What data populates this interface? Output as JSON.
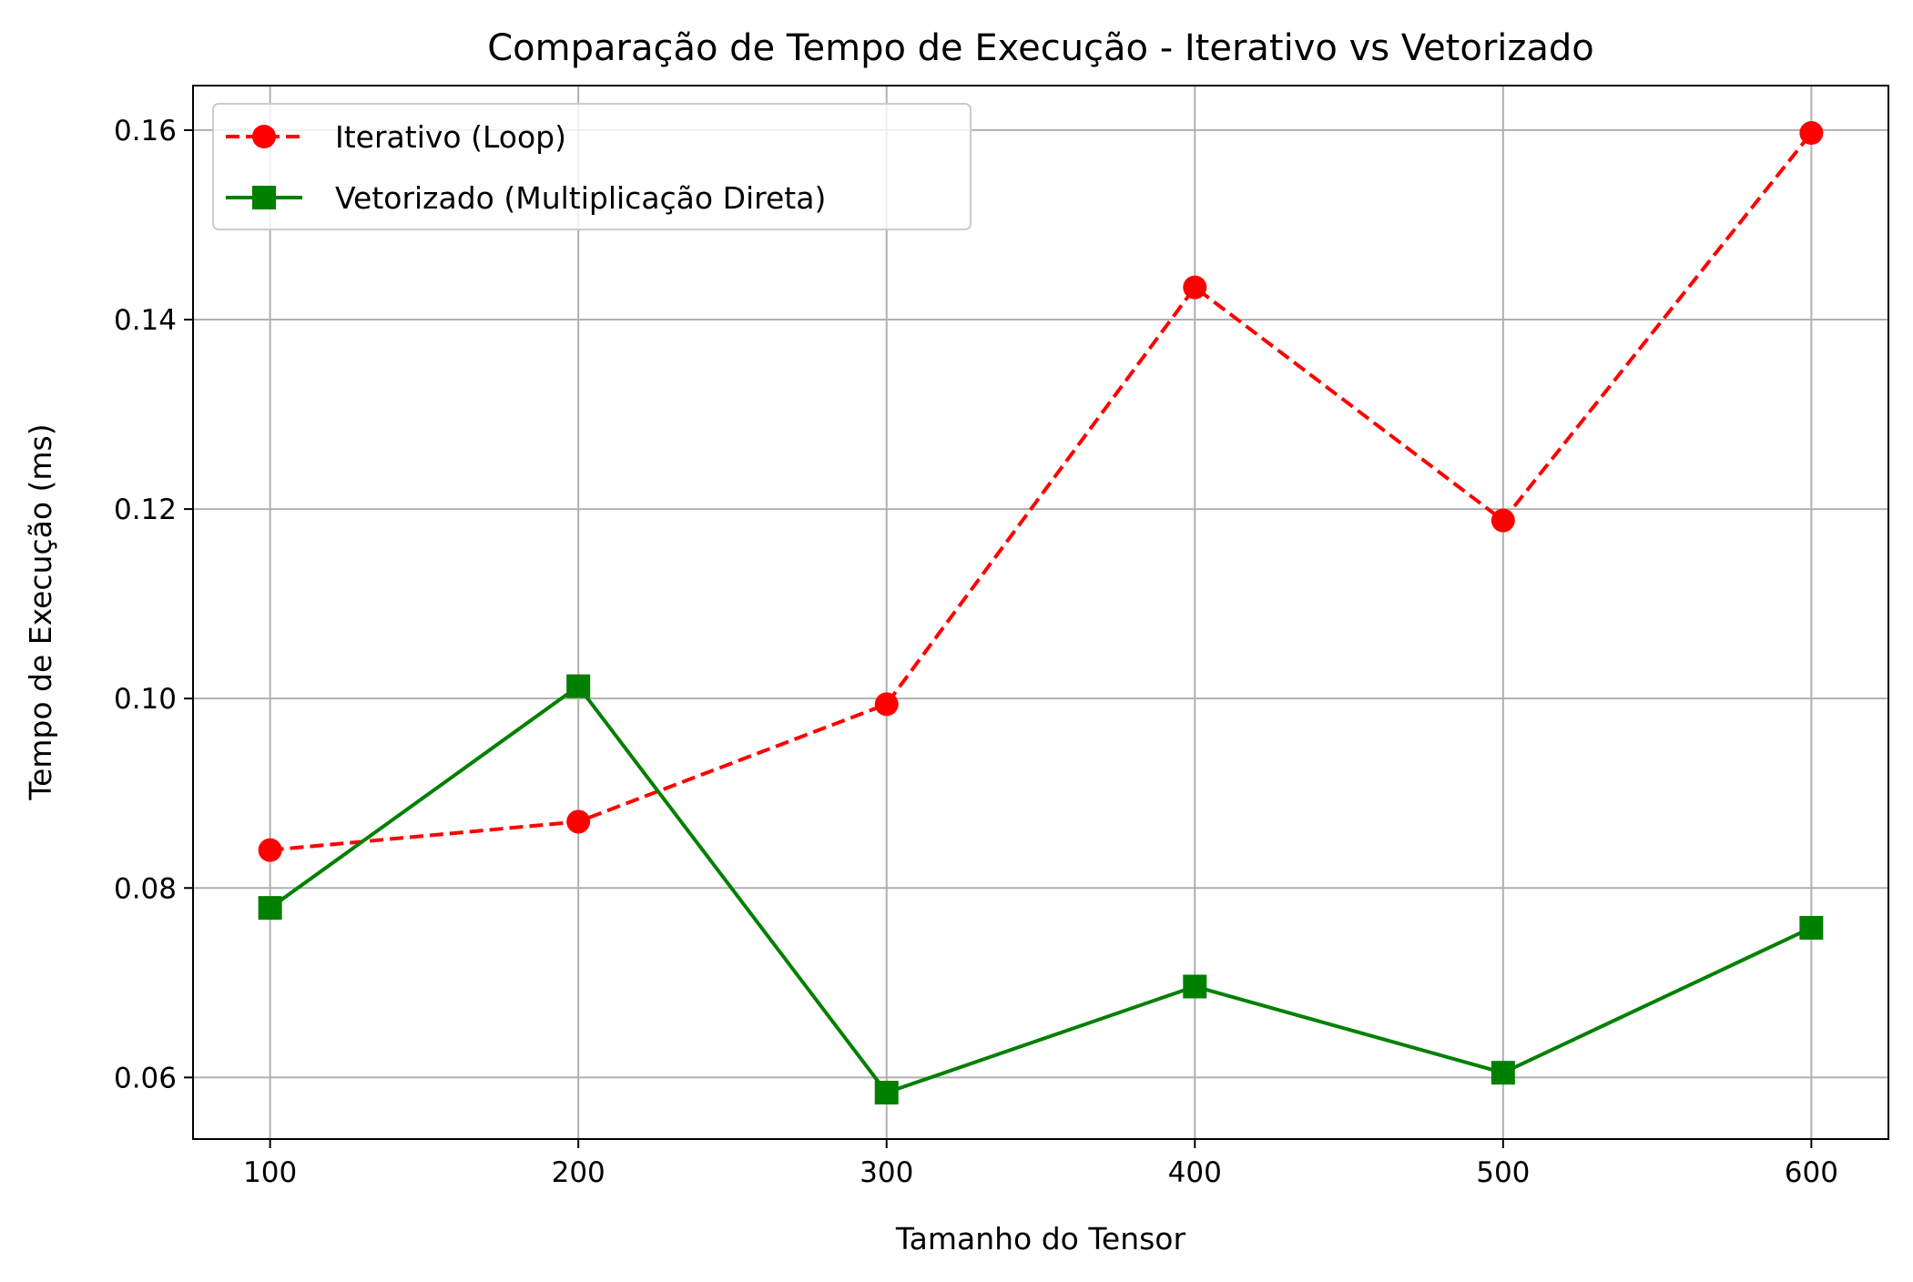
{
  "chart_data": {
    "type": "line",
    "title": "Comparação de Tempo de Execução - Iterativo vs Vetorizado",
    "xlabel": "Tamanho do Tensor",
    "ylabel": "Tempo de Execução (ms)",
    "x": [
      100,
      200,
      300,
      400,
      500,
      600
    ],
    "x_ticks": [
      "100",
      "200",
      "300",
      "400",
      "500",
      "600"
    ],
    "y_ticks": [
      "0.06",
      "0.08",
      "0.10",
      "0.12",
      "0.14",
      "0.16"
    ],
    "xlim": [
      75,
      625
    ],
    "ylim": [
      0.0535,
      0.1647
    ],
    "grid": true,
    "legend_position": "upper-left",
    "series": [
      {
        "name": "Iterativo (Loop)",
        "values": [
          0.084,
          0.087,
          0.0994,
          0.1434,
          0.1188,
          0.1597
        ],
        "color": "#ff0000",
        "line_style": "dashed",
        "marker": "circle"
      },
      {
        "name": "Vetorizado (Multiplicação Direta)",
        "values": [
          0.0779,
          0.1013,
          0.0584,
          0.0696,
          0.0605,
          0.0758
        ],
        "color": "#008000",
        "line_style": "solid",
        "marker": "square"
      }
    ]
  }
}
